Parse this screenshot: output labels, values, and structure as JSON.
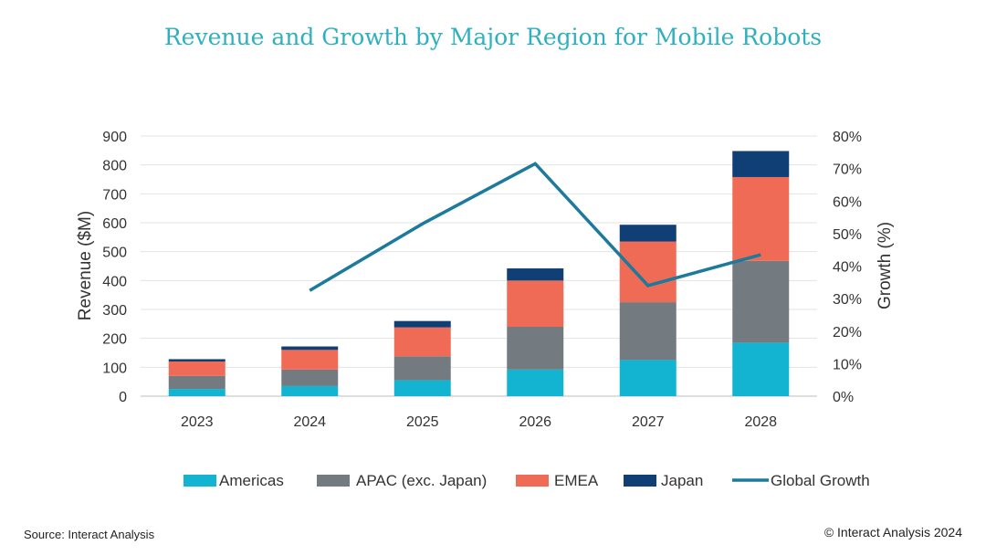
{
  "chart_data": {
    "type": "bar",
    "stacked": true,
    "title": "Revenue and Growth by Major Region for Mobile Robots",
    "categories": [
      "2023",
      "2024",
      "2025",
      "2026",
      "2027",
      "2028"
    ],
    "ylabel": "Revenue ($M)",
    "y2label": "Growth (%)",
    "ylim": [
      0,
      900
    ],
    "y2lim": [
      0,
      80
    ],
    "yticks": [
      "0",
      "100",
      "200",
      "300",
      "400",
      "500",
      "600",
      "700",
      "800",
      "900"
    ],
    "y2ticks": [
      "0%",
      "10%",
      "20%",
      "30%",
      "40%",
      "50%",
      "60%",
      "70%",
      "80%"
    ],
    "grid": true,
    "legend_position": "bottom",
    "series": [
      {
        "name": "Americas",
        "color": "#13b4d2",
        "values": [
          25,
          35,
          55,
          92,
          125,
          185
        ]
      },
      {
        "name": "APAC (exc. Japan)",
        "color": "#737b80",
        "values": [
          45,
          57,
          83,
          148,
          200,
          283
        ]
      },
      {
        "name": "EMEA",
        "color": "#ef6b55",
        "values": [
          50,
          68,
          100,
          160,
          210,
          290
        ]
      },
      {
        "name": "Japan",
        "color": "#0f3f75",
        "values": [
          8,
          12,
          22,
          42,
          58,
          90
        ]
      }
    ],
    "line_series": {
      "name": "Global Growth",
      "color": "#1c7a9c",
      "axis": "right",
      "values": [
        null,
        32.5,
        53,
        71.5,
        34,
        43.5
      ]
    }
  },
  "footer": {
    "source": "Source: Interact Analysis",
    "copyright": "© Interact Analysis 2024"
  }
}
